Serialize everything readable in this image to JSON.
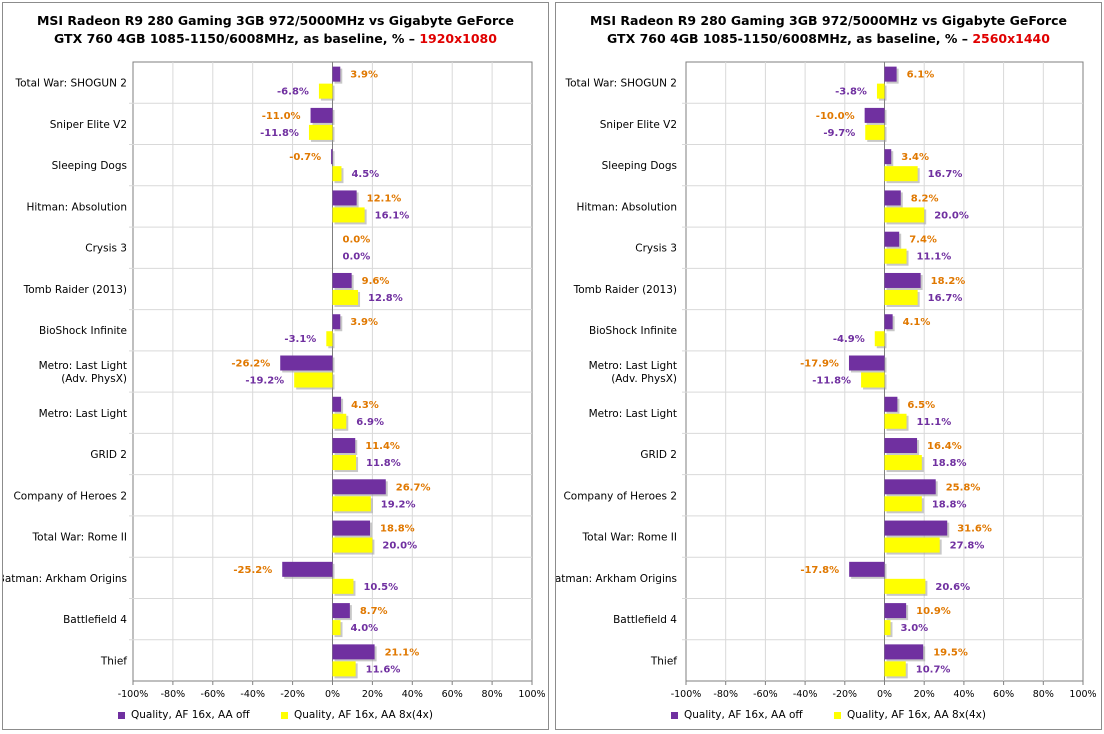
{
  "colors": {
    "series1": "#7030a0",
    "series1_label": "#7030a0",
    "series2": "#ffff00",
    "series2_label": "#e07800",
    "resolution": "#e00000",
    "grid": "#d9d9d9",
    "axis": "#7f7f7f"
  },
  "chart_data": [
    {
      "type": "bar",
      "orientation": "horizontal",
      "title": "MSI Radeon R9 280 Gaming 3GB 972/5000MHz vs Gigabyte GeForce GTX 760 4GB 1085-1150/6008MHz, as baseline, % – 1920x1080",
      "title_line1": "MSI Radeon R9 280 Gaming 3GB 972/5000MHz vs Gigabyte GeForce",
      "title_line2": "GTX 760 4GB 1085-1150/6008MHz, as baseline, % – ",
      "resolution": "1920x1080",
      "categories": [
        "Total War: SHOGUN 2",
        "Sniper Elite V2",
        "Sleeping Dogs",
        "Hitman: Absolution",
        "Crysis 3",
        "Tomb Raider (2013)",
        "BioShock Infinite",
        "Metro: Last Light\n(Adv. PhysX)",
        "Metro: Last Light",
        "GRID 2",
        "Company of Heroes 2",
        "Total War: Rome II",
        "Batman: Arkham Origins",
        "Battlefield 4",
        "Thief"
      ],
      "series": [
        {
          "name": "Quality,  AF 16x,  AA off",
          "values": [
            3.9,
            -11.0,
            -0.7,
            12.1,
            0.0,
            9.6,
            3.9,
            -26.2,
            4.3,
            11.4,
            26.7,
            18.8,
            -25.2,
            8.7,
            21.1
          ]
        },
        {
          "name": "Quality,  AF 16x,  AA 8x(4x)",
          "values": [
            -6.8,
            -11.8,
            4.5,
            16.1,
            0.0,
            12.8,
            -3.1,
            -19.2,
            6.9,
            11.8,
            19.2,
            20.0,
            10.5,
            4.0,
            11.6
          ]
        }
      ],
      "xlim": [
        -100,
        100
      ],
      "xticks": [
        "-100%",
        "-80%",
        "-60%",
        "-40%",
        "-20%",
        "0%",
        "20%",
        "40%",
        "60%",
        "80%",
        "100%"
      ],
      "grid": true,
      "legend_position": "bottom"
    },
    {
      "type": "bar",
      "orientation": "horizontal",
      "title": "MSI Radeon R9 280 Gaming 3GB 972/5000MHz vs Gigabyte GeForce GTX 760 4GB 1085-1150/6008MHz, as baseline, % – 2560x1440",
      "title_line1": "MSI Radeon R9 280 Gaming 3GB 972/5000MHz vs Gigabyte GeForce",
      "title_line2": "GTX 760 4GB 1085-1150/6008MHz, as baseline, % – ",
      "resolution": "2560x1440",
      "categories": [
        "Total War: SHOGUN 2",
        "Sniper Elite V2",
        "Sleeping Dogs",
        "Hitman: Absolution",
        "Crysis 3",
        "Tomb Raider (2013)",
        "BioShock Infinite",
        "Metro: Last Light\n(Adv. PhysX)",
        "Metro: Last Light",
        "GRID 2",
        "Company of Heroes 2",
        "Total War: Rome II",
        "Batman: Arkham Origins",
        "Battlefield 4",
        "Thief"
      ],
      "series": [
        {
          "name": "Quality,  AF 16x,  AA off",
          "values": [
            6.1,
            -10.0,
            3.4,
            8.2,
            7.4,
            18.2,
            4.1,
            -17.9,
            6.5,
            16.4,
            25.8,
            31.6,
            -17.8,
            10.9,
            19.5
          ]
        },
        {
          "name": "Quality,  AF 16x,  AA 8x(4x)",
          "values": [
            -3.8,
            -9.7,
            16.7,
            20.0,
            11.1,
            16.7,
            -4.9,
            -11.8,
            11.1,
            18.8,
            18.8,
            27.8,
            20.6,
            3.0,
            10.7
          ]
        }
      ],
      "xlim": [
        -100,
        100
      ],
      "xticks": [
        "-100%",
        "-80%",
        "-60%",
        "-40%",
        "-20%",
        "0%",
        "20%",
        "40%",
        "60%",
        "80%",
        "100%"
      ],
      "grid": true,
      "legend_position": "bottom"
    }
  ]
}
